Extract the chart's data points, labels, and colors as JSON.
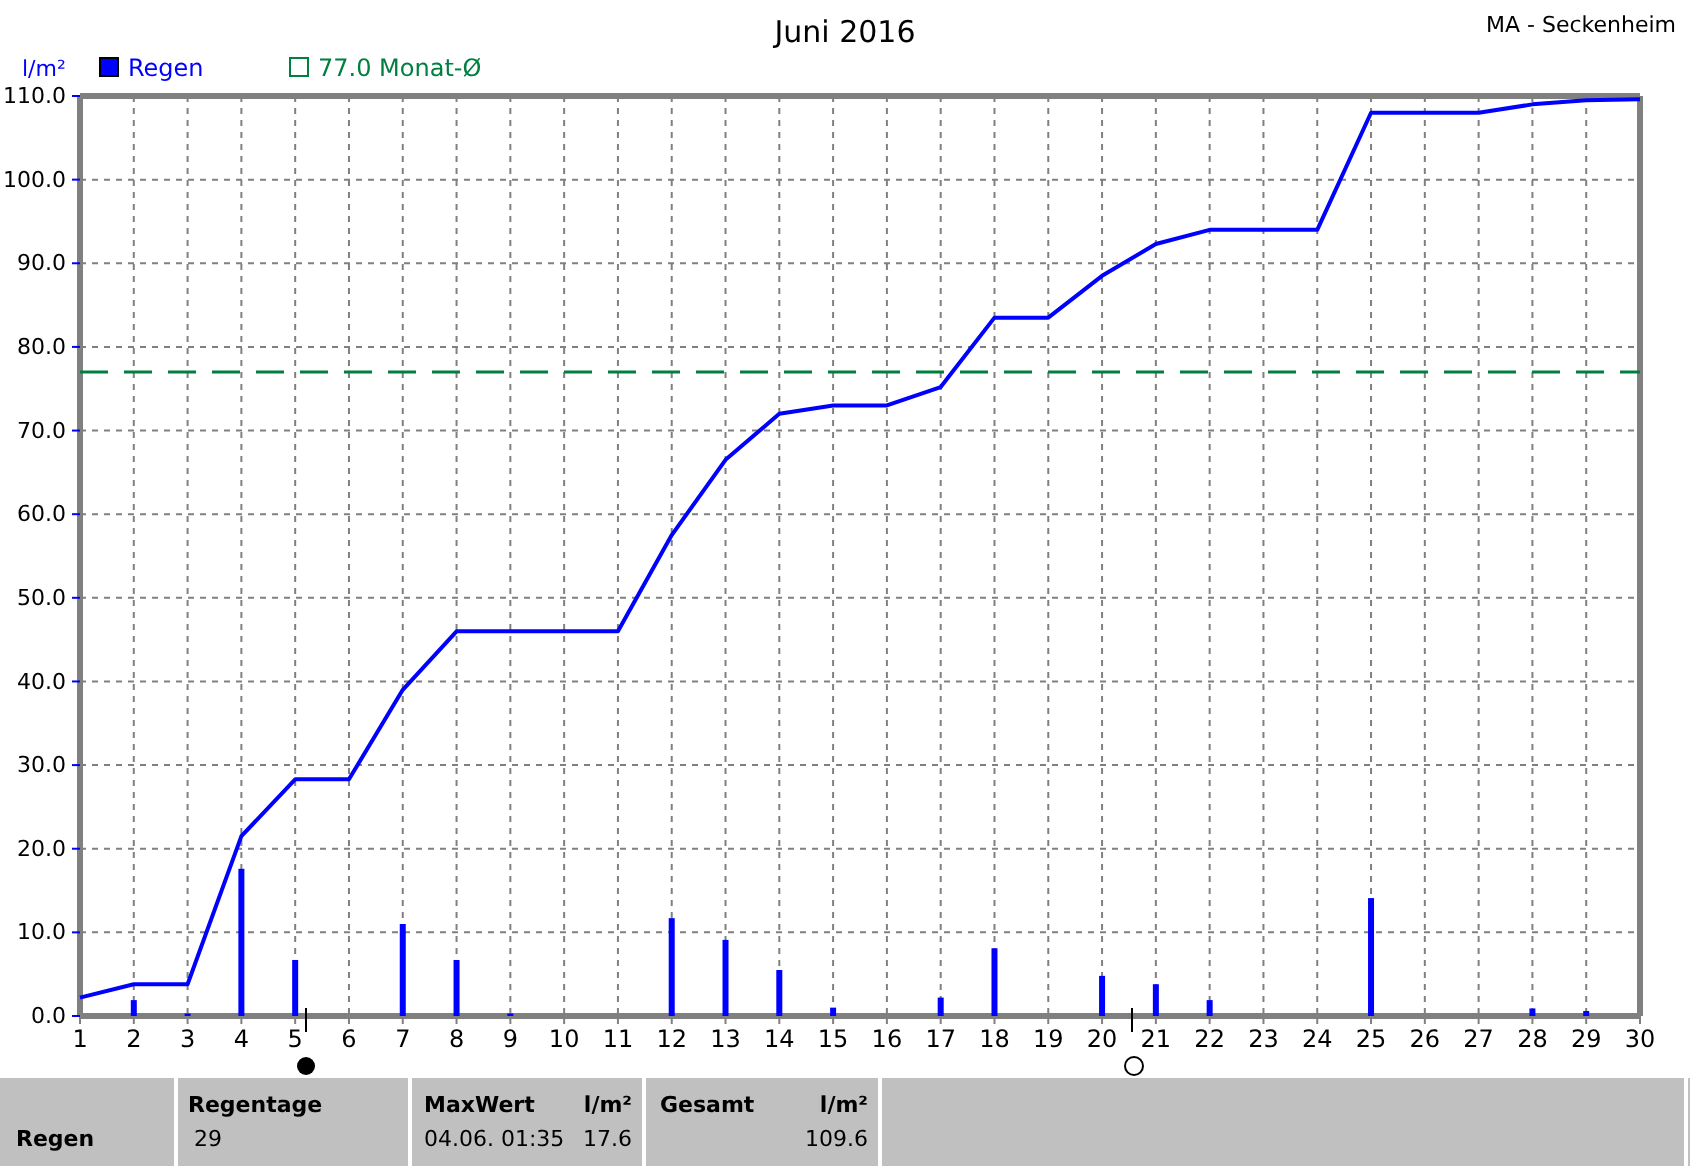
{
  "chart_data": {
    "type": "line",
    "title": "Juni 2016",
    "ylabel": "l/m²",
    "xlim": [
      1,
      30
    ],
    "xticks": [
      1,
      2,
      3,
      4,
      5,
      6,
      7,
      8,
      9,
      10,
      11,
      12,
      13,
      14,
      15,
      16,
      17,
      18,
      19,
      20,
      21,
      22,
      23,
      24,
      25,
      26,
      27,
      28,
      29,
      30
    ],
    "ylim": [
      0,
      110
    ],
    "yticks": [
      {
        "value": 0,
        "label": "0.0"
      },
      {
        "value": 10,
        "label": "10.0"
      },
      {
        "value": 20,
        "label": "20.0"
      },
      {
        "value": 30,
        "label": "30.0"
      },
      {
        "value": 40,
        "label": "40.0"
      },
      {
        "value": 50,
        "label": "50.0"
      },
      {
        "value": 60,
        "label": "60.0"
      },
      {
        "value": 70,
        "label": "70.0"
      },
      {
        "value": 80,
        "label": "80.0"
      },
      {
        "value": 90,
        "label": "90.0"
      },
      {
        "value": 100,
        "label": "100.0"
      },
      {
        "value": 110,
        "label": "110.0"
      }
    ],
    "grid": true,
    "legend": "top left",
    "series": [
      {
        "name": "Regen",
        "type": "bar",
        "color": "#0000ff",
        "x": [
          2,
          3,
          4,
          5,
          7,
          8,
          9,
          12,
          13,
          14,
          15,
          17,
          18,
          20,
          21,
          22,
          25,
          28,
          29
        ],
        "values": [
          1.9,
          0.3,
          17.6,
          6.7,
          11,
          6.7,
          0.3,
          11.7,
          9.1,
          5.5,
          1.0,
          2.2,
          8.1,
          4.8,
          3.8,
          1.9,
          14.1,
          0.9,
          0.6
        ]
      },
      {
        "color": "#0000ff",
        "x": [
          1,
          2,
          3,
          4,
          5,
          6,
          7,
          8,
          11,
          12,
          13,
          14,
          15,
          16,
          17,
          18,
          19,
          20,
          21,
          22,
          24,
          25,
          27,
          28,
          29,
          30
        ],
        "values": [
          2.2,
          3.8,
          3.8,
          21.5,
          28.3,
          28.3,
          39,
          46,
          46,
          57.5,
          66.5,
          72,
          73,
          73,
          75.2,
          83.5,
          83.5,
          88.5,
          92.3,
          94,
          94,
          108,
          108,
          109,
          109.5,
          109.6
        ]
      }
    ],
    "ref_lines": [
      {
        "axis": "y",
        "value": 77,
        "label": "77.0 Monat-Ø",
        "color": "#008040",
        "line_style": "dashed"
      }
    ],
    "annotations": [
      "MA - Seckenheim",
      "Regen",
      "Regentage",
      "29",
      "MaxWert",
      "l/m²",
      "04.06.  01:35",
      "17.6",
      "Gesamt",
      "l/m²",
      "109.6"
    ]
  }
}
